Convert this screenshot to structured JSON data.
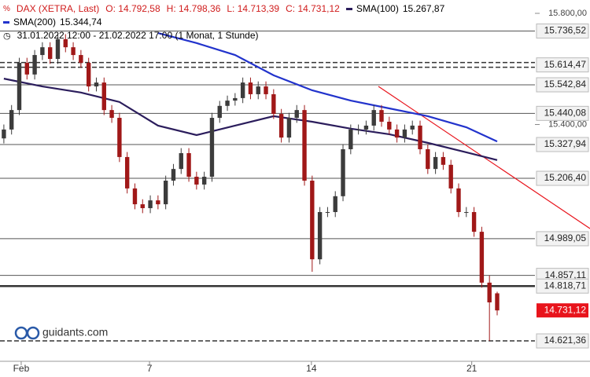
{
  "chart_data": {
    "type": "candlestick",
    "title": "DAX (XETRA, Last)",
    "ohlc_text": [
      "O: 14.792,58",
      "H: 14.798,36",
      "L: 14.713,39",
      "C: 14.731,12"
    ],
    "subtitle": "31.01.2022 12:00 - 21.02.2022 17:00  (1 Monat, 1 Stunde)",
    "watermark": "guidants.com",
    "up_color": "#3c3c3c",
    "down_color": "#a01818",
    "open": [
      15350,
      15382,
      15452,
      15622,
      15580,
      15650,
      15678,
      15636,
      15707,
      15678,
      15650,
      15622,
      15537,
      15551,
      15452,
      15424,
      15283,
      15170,
      15113,
      15099,
      15127,
      15113,
      15198,
      15240,
      15297,
      15212,
      15184,
      15212,
      15424,
      15467,
      15486,
      15495,
      15551,
      15509,
      15537,
      15509,
      15438,
      15353,
      15424,
      15452,
      15198,
      14915,
      15085,
      15085,
      15142,
      15311,
      15382,
      15382,
      15396,
      15452,
      15410,
      15382,
      15353,
      15382,
      15396,
      15311,
      15240,
      15283,
      15255,
      15170,
      15085,
      15085,
      15014,
      14831,
      14792.58
    ],
    "high": [
      15400,
      15470,
      15640,
      15640,
      15668,
      15696,
      15696,
      15725,
      15725,
      15696,
      15668,
      15640,
      15569,
      15569,
      15470,
      15442,
      15301,
      15188,
      15131,
      15145,
      15145,
      15216,
      15258,
      15315,
      15315,
      15230,
      15230,
      15442,
      15485,
      15504,
      15513,
      15569,
      15569,
      15555,
      15555,
      15527,
      15456,
      15442,
      15470,
      15470,
      15216,
      15103,
      15103,
      15160,
      15329,
      15400,
      15400,
      15414,
      15470,
      15470,
      15428,
      15400,
      15400,
      15414,
      15414,
      15329,
      15301,
      15301,
      15273,
      15188,
      15103,
      15103,
      15032,
      14857,
      14798.36
    ],
    "low": [
      15332,
      15364,
      15434,
      15562,
      15562,
      15632,
      15618,
      15618,
      15660,
      15632,
      15604,
      15519,
      15519,
      15434,
      15406,
      15265,
      15152,
      15095,
      15081,
      15081,
      15095,
      15095,
      15180,
      15222,
      15194,
      15166,
      15166,
      15194,
      15406,
      15449,
      15468,
      15477,
      15491,
      15491,
      15491,
      15420,
      15335,
      15335,
      15406,
      15180,
      14870,
      14897,
      15067,
      15067,
      15124,
      15293,
      15364,
      15364,
      15378,
      15392,
      15364,
      15335,
      15335,
      15364,
      15293,
      15222,
      15222,
      15237,
      15152,
      15067,
      15067,
      14996,
      14813,
      14621.36,
      14713.39
    ],
    "close": [
      15382,
      15452,
      15622,
      15580,
      15650,
      15678,
      15636,
      15707,
      15678,
      15650,
      15622,
      15537,
      15551,
      15452,
      15424,
      15283,
      15170,
      15113,
      15099,
      15127,
      15113,
      15198,
      15240,
      15297,
      15212,
      15184,
      15212,
      15424,
      15467,
      15486,
      15495,
      15551,
      15509,
      15537,
      15509,
      15438,
      15353,
      15424,
      15452,
      15198,
      14915,
      15085,
      15085,
      15142,
      15311,
      15382,
      15382,
      15396,
      15452,
      15410,
      15382,
      15353,
      15382,
      15396,
      15311,
      15240,
      15283,
      15255,
      15170,
      15085,
      15085,
      15014,
      14831,
      14760,
      14731.12
    ],
    "series": [
      {
        "name": "SMA(100)",
        "value_label": "15.267,87",
        "color": "#2b1d5c",
        "x": [
          0,
          5,
          10,
          15,
          20,
          25,
          30,
          35,
          40,
          45,
          50,
          55,
          60,
          64
        ],
        "values": [
          15565,
          15537,
          15515,
          15481,
          15396,
          15362,
          15396,
          15430,
          15410,
          15385,
          15365,
          15334,
          15300,
          15272
        ]
      },
      {
        "name": "SMA(200)",
        "value_label": "15.344,74",
        "color": "#2233cc",
        "x": [
          20,
          25,
          30,
          35,
          40,
          45,
          50,
          55,
          60,
          64
        ],
        "values": [
          15729,
          15693,
          15650,
          15577,
          15523,
          15486,
          15458,
          15430,
          15390,
          15339
        ]
      }
    ],
    "xlim": [
      -0.5,
      68.9
    ],
    "xticks": [
      {
        "value": 2.25,
        "label": "Feb"
      },
      {
        "value": 18.9,
        "label": "7"
      },
      {
        "value": 39.9,
        "label": "14"
      },
      {
        "value": 60.7,
        "label": "21"
      }
    ],
    "ylim": [
      14548,
      15848
    ],
    "yticks": [
      {
        "value": 15800,
        "label": "15.800,00"
      },
      {
        "value": 15400,
        "label": "15.400,00"
      }
    ],
    "levels": [
      {
        "value": 15736.52,
        "label": "15.736,52",
        "style": "solid"
      },
      {
        "value": 15614.47,
        "label": "15.614,47",
        "style": "double-dashed"
      },
      {
        "value": 15542.84,
        "label": "15.542,84",
        "style": "solid"
      },
      {
        "value": 15440.08,
        "label": "15.440,08",
        "style": "solid"
      },
      {
        "value": 15327.94,
        "label": "15.327,94",
        "style": "solid"
      },
      {
        "value": 15206.4,
        "label": "15.206,40",
        "style": "solid"
      },
      {
        "value": 14989.05,
        "label": "14.989,05",
        "style": "solid"
      },
      {
        "value": 14857.11,
        "label": "14.857,11",
        "style": "solid"
      },
      {
        "value": 14818.71,
        "label": "14.818,71",
        "style": "thick"
      },
      {
        "value": 14621.36,
        "label": "14.621,36",
        "style": "dashed"
      }
    ],
    "current_price": {
      "value": 14731.12,
      "label": "14.731,12",
      "color": "#e8141c"
    }
  }
}
